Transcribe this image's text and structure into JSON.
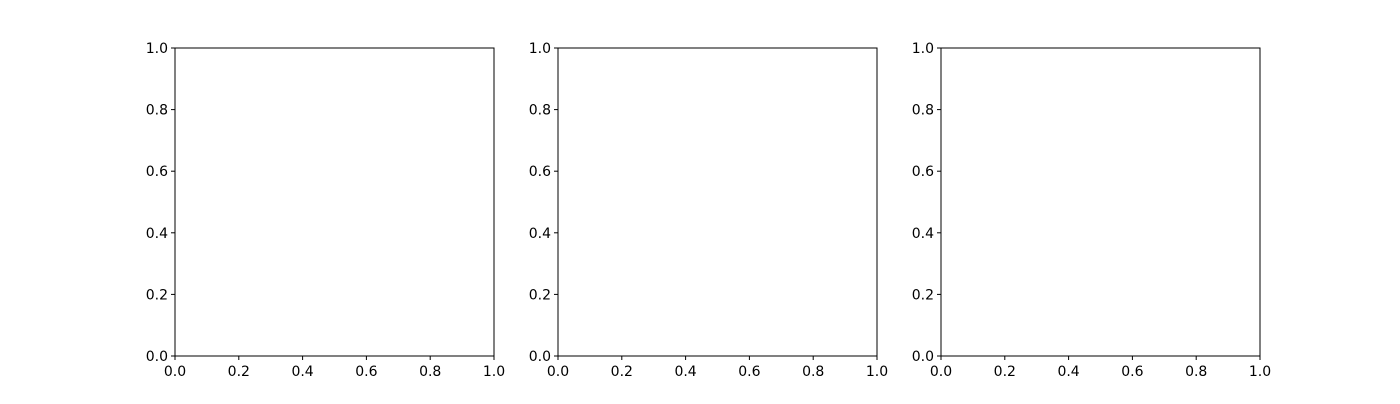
{
  "chart_data": [
    {
      "type": "line",
      "title": "",
      "xlabel": "",
      "ylabel": "",
      "xlim": [
        0.0,
        1.0
      ],
      "ylim": [
        0.0,
        1.0
      ],
      "x_ticks": [
        "0.0",
        "0.2",
        "0.4",
        "0.6",
        "0.8",
        "1.0"
      ],
      "y_ticks": [
        "0.0",
        "0.2",
        "0.4",
        "0.6",
        "0.8",
        "1.0"
      ],
      "grid": false,
      "series": []
    },
    {
      "type": "line",
      "title": "",
      "xlabel": "",
      "ylabel": "",
      "xlim": [
        0.0,
        1.0
      ],
      "ylim": [
        0.0,
        1.0
      ],
      "x_ticks": [
        "0.0",
        "0.2",
        "0.4",
        "0.6",
        "0.8",
        "1.0"
      ],
      "y_ticks": [
        "0.0",
        "0.2",
        "0.4",
        "0.6",
        "0.8",
        "1.0"
      ],
      "grid": false,
      "series": []
    },
    {
      "type": "line",
      "title": "",
      "xlabel": "",
      "ylabel": "",
      "xlim": [
        0.0,
        1.0
      ],
      "ylim": [
        0.0,
        1.0
      ],
      "x_ticks": [
        "0.0",
        "0.2",
        "0.4",
        "0.6",
        "0.8",
        "1.0"
      ],
      "y_ticks": [
        "0.0",
        "0.2",
        "0.4",
        "0.6",
        "0.8",
        "1.0"
      ],
      "grid": false,
      "series": []
    }
  ],
  "colors": {
    "axes": "#000000",
    "background": "#ffffff"
  }
}
